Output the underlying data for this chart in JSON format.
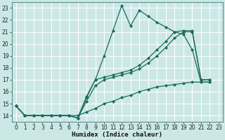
{
  "xlabel": "Humidex (Indice chaleur)",
  "bg_color": "#cce8e6",
  "grid_color": "#b8d8d6",
  "line_color": "#1a6b5a",
  "xlim": [
    -0.5,
    23.5
  ],
  "ylim": [
    13.5,
    23.5
  ],
  "yticks": [
    14,
    15,
    16,
    17,
    18,
    19,
    20,
    21,
    22,
    23
  ],
  "xticks": [
    0,
    1,
    2,
    3,
    4,
    5,
    6,
    7,
    8,
    9,
    10,
    11,
    12,
    13,
    14,
    15,
    16,
    17,
    18,
    19,
    20,
    21,
    22,
    23
  ],
  "s1_x": [
    0,
    1,
    2,
    3,
    4,
    5,
    6,
    7,
    8,
    9,
    10,
    11,
    12,
    13,
    14,
    15,
    16,
    17,
    18,
    19,
    20,
    21,
    22
  ],
  "s1_y": [
    14.8,
    14.0,
    14.0,
    14.0,
    14.0,
    14.0,
    14.0,
    13.8,
    15.6,
    17.0,
    19.0,
    21.1,
    23.2,
    21.5,
    22.8,
    22.3,
    21.8,
    21.4,
    21.0,
    20.8,
    19.5,
    16.8,
    16.8
  ],
  "s2_x": [
    0,
    1,
    2,
    3,
    4,
    5,
    6,
    7,
    8,
    9,
    10,
    11,
    12,
    13,
    14,
    15,
    16,
    17,
    18,
    19,
    20,
    21,
    22
  ],
  "s2_y": [
    14.8,
    14.0,
    14.0,
    14.0,
    14.0,
    14.0,
    14.0,
    13.8,
    15.5,
    17.0,
    17.2,
    17.4,
    17.6,
    17.8,
    18.2,
    18.8,
    19.5,
    20.2,
    21.0,
    21.1,
    21.1,
    17.0,
    17.0
  ],
  "s3_x": [
    0,
    1,
    2,
    3,
    4,
    5,
    6,
    7,
    8,
    9,
    10,
    11,
    12,
    13,
    14,
    15,
    16,
    17,
    18,
    19,
    20,
    21,
    22
  ],
  "s3_y": [
    14.8,
    14.0,
    14.0,
    14.0,
    14.0,
    14.0,
    14.0,
    13.8,
    15.2,
    16.5,
    17.0,
    17.2,
    17.4,
    17.6,
    17.9,
    18.4,
    19.0,
    19.7,
    20.5,
    21.0,
    21.0,
    17.0,
    17.0
  ],
  "s4_x": [
    0,
    1,
    2,
    3,
    4,
    5,
    6,
    7,
    8,
    9,
    10,
    11,
    12,
    13,
    14,
    15,
    16,
    17,
    18,
    19,
    20,
    21,
    22
  ],
  "s4_y": [
    14.8,
    14.0,
    14.0,
    14.0,
    14.0,
    14.0,
    14.0,
    14.0,
    14.3,
    14.6,
    15.0,
    15.2,
    15.5,
    15.7,
    16.0,
    16.2,
    16.4,
    16.5,
    16.6,
    16.7,
    16.8,
    16.8,
    16.8
  ]
}
